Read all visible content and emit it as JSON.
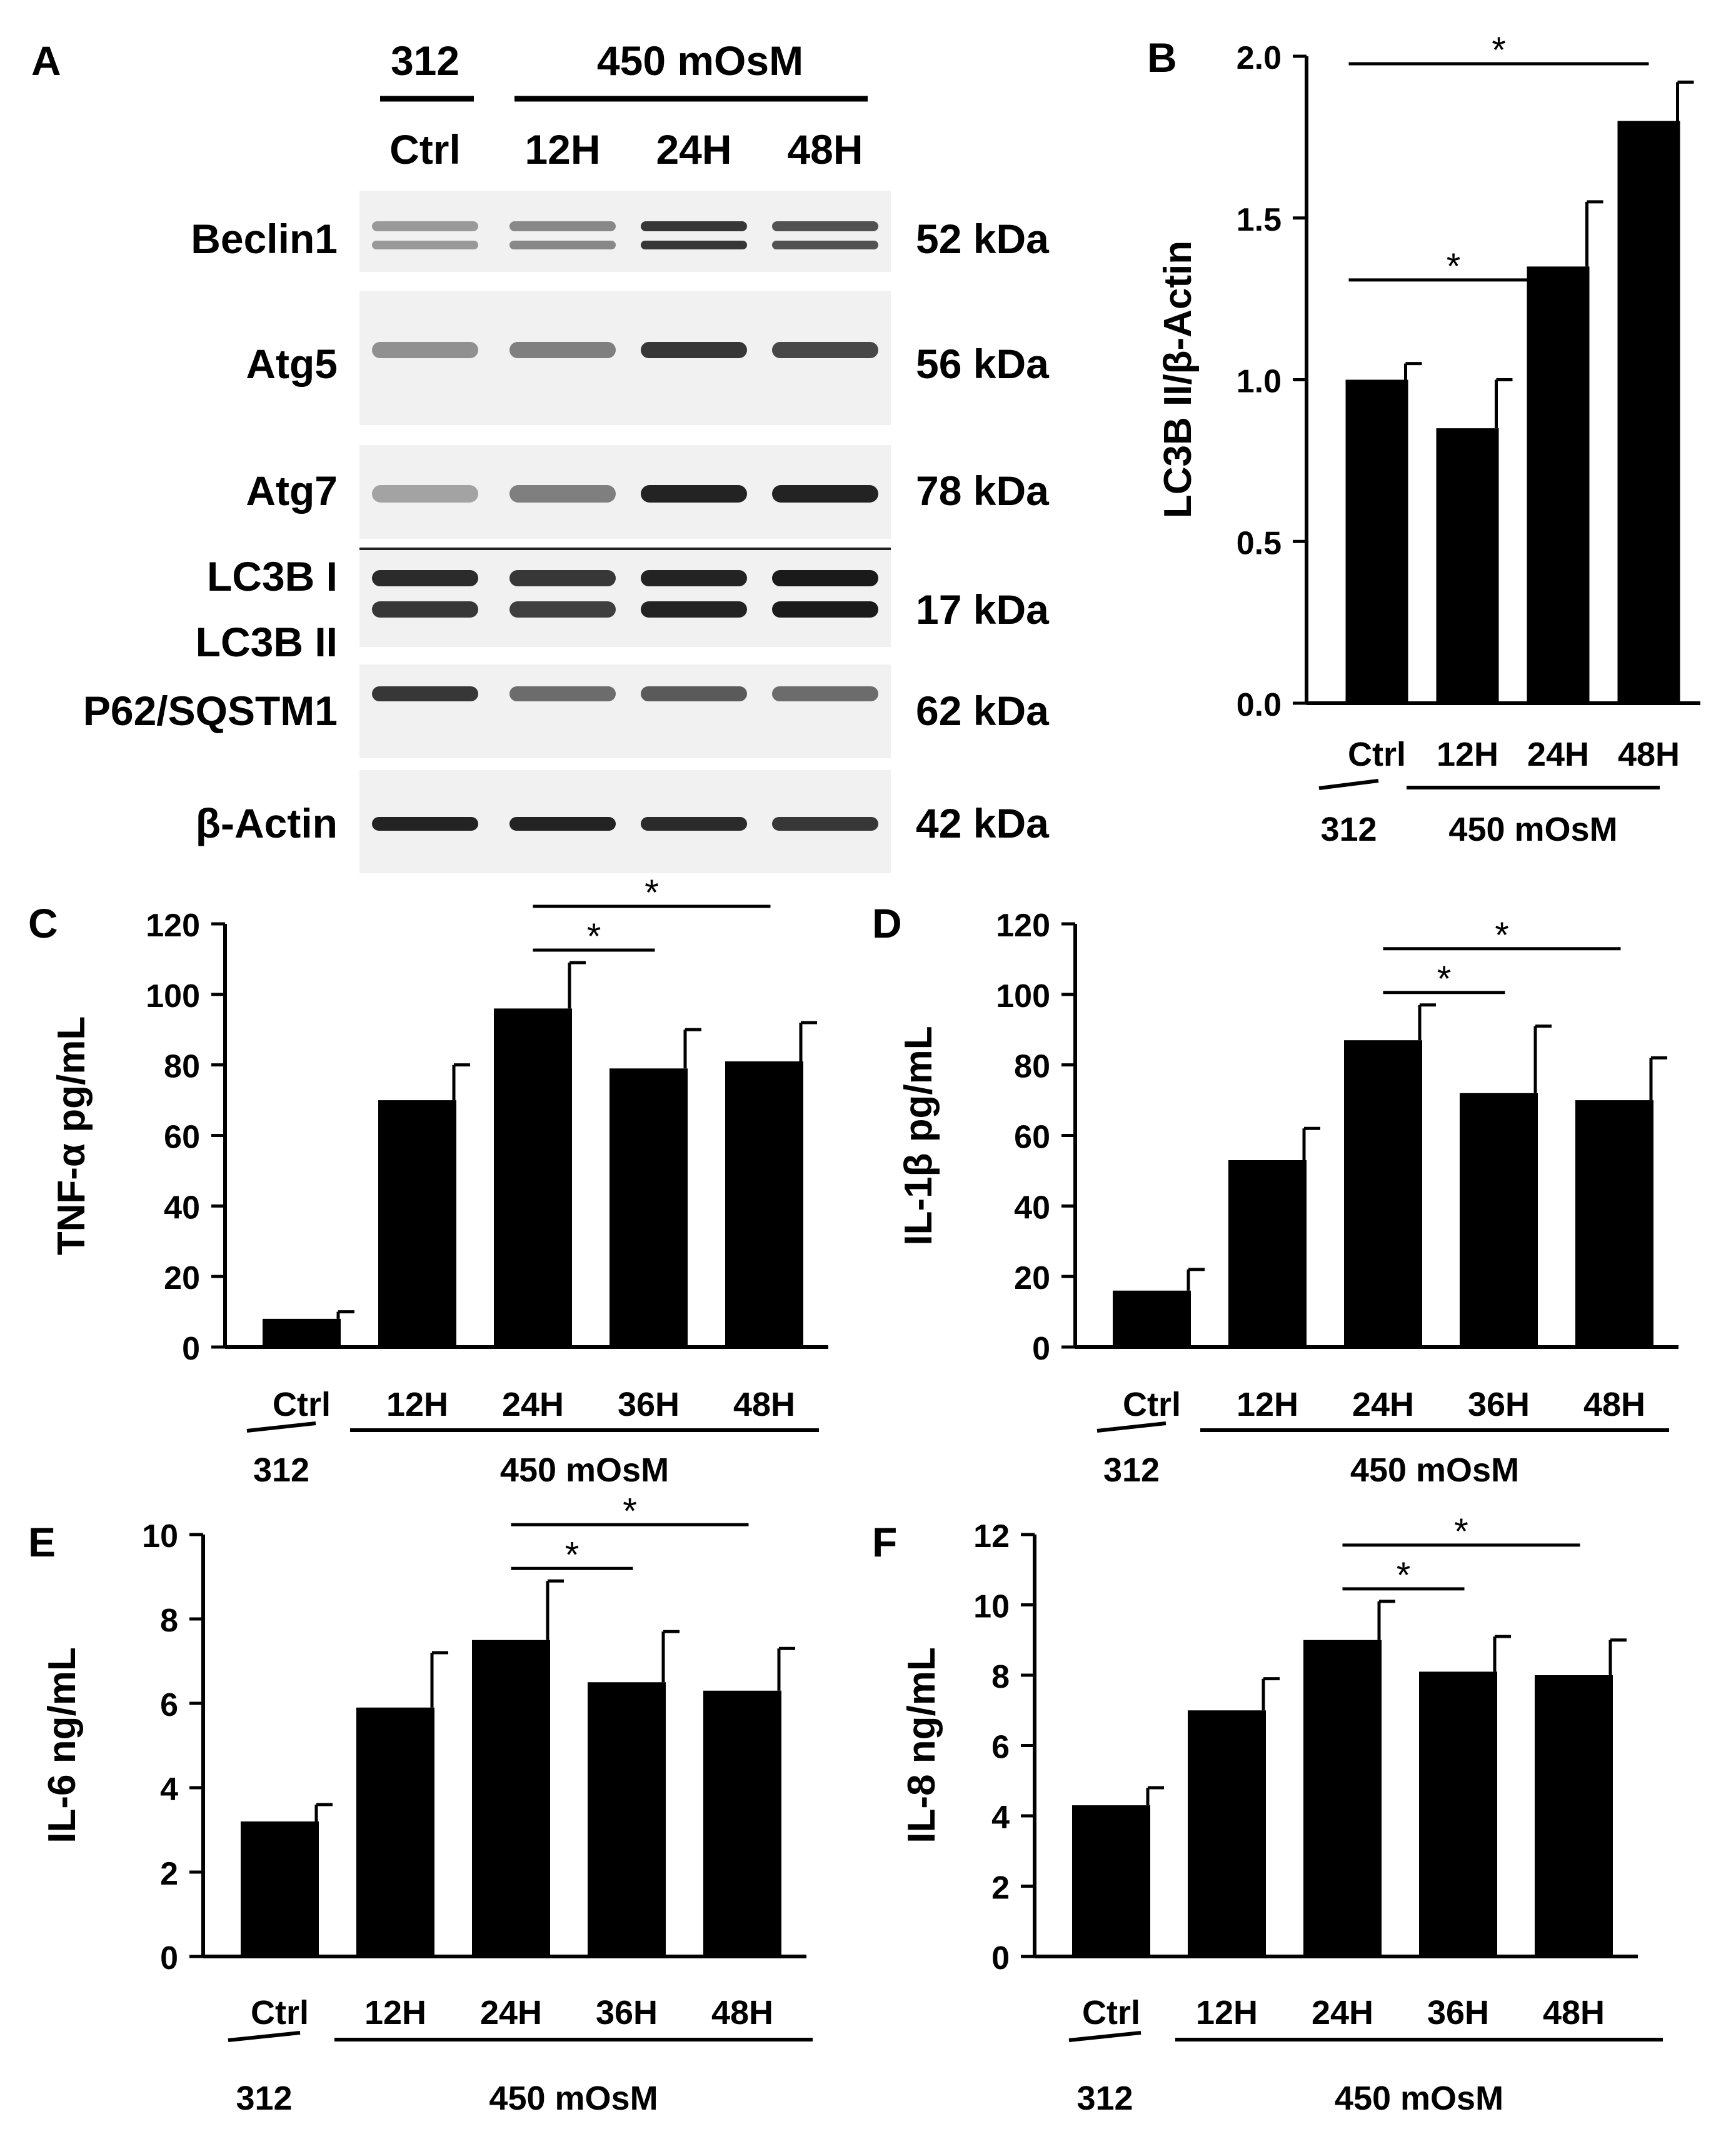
{
  "colors": {
    "bar": "#000000",
    "axis": "#000000",
    "background": "#ffffff",
    "blot_bg": "#f1f1f1",
    "band": "#1a1a1a"
  },
  "panel_a": {
    "label": "A",
    "header_ctrl": "312",
    "header_treat": "450 mOsM",
    "lanes": [
      "Ctrl",
      "12H",
      "24H",
      "48H"
    ],
    "blots": [
      {
        "protein": "Beclin1",
        "size": "52 kDa",
        "intensity": [
          0.3,
          0.4,
          0.85,
          0.7
        ]
      },
      {
        "protein": "Atg5",
        "size": "56 kDa",
        "intensity": [
          0.35,
          0.45,
          0.85,
          0.75
        ]
      },
      {
        "protein": "Atg7",
        "size": "78 kDa",
        "intensity": [
          0.25,
          0.45,
          0.95,
          0.95
        ]
      },
      {
        "protein": "LC3B I",
        "protein2": "LC3B II",
        "size": "17 kDa",
        "intensity": [
          0.9,
          0.85,
          0.95,
          1.0
        ],
        "intensity2": [
          0.85,
          0.8,
          0.95,
          1.0
        ]
      },
      {
        "protein": "P62/SQSTM1",
        "size": "62 kDa",
        "intensity": [
          0.85,
          0.55,
          0.65,
          0.55
        ]
      },
      {
        "protein": "β-Actin",
        "size": "42 kDa",
        "intensity": [
          0.95,
          0.95,
          0.9,
          0.85
        ]
      }
    ]
  },
  "chart_data": [
    {
      "panel": "B",
      "type": "bar",
      "categories": [
        "Ctrl",
        "12H",
        "24H",
        "48H"
      ],
      "values": [
        1.0,
        0.85,
        1.35,
        1.8
      ],
      "errors": [
        0.05,
        0.15,
        0.2,
        0.12
      ],
      "ylabel": "LC3B  II/β-Actin",
      "ylim": [
        0,
        2.0
      ],
      "yticks": [
        "0.0",
        "0.5",
        "1.0",
        "1.5",
        "2.0"
      ],
      "group_ctrl": "312",
      "group_treat": "450 mOsM",
      "significance": [
        {
          "from": 0,
          "to": 2,
          "label": "*"
        },
        {
          "from": 0,
          "to": 3,
          "label": "*"
        }
      ]
    },
    {
      "panel": "C",
      "type": "bar",
      "categories": [
        "Ctrl",
        "12H",
        "24H",
        "36H",
        "48H"
      ],
      "values": [
        8,
        70,
        96,
        79,
        81
      ],
      "errors": [
        2,
        10,
        13,
        11,
        11
      ],
      "ylabel": "TNF-α pg/mL",
      "ylim": [
        0,
        120
      ],
      "yticks": [
        "0",
        "20",
        "40",
        "60",
        "80",
        "100",
        "120"
      ],
      "group_ctrl": "312",
      "group_treat": "450 mOsM",
      "significance": [
        {
          "from": 2,
          "to": 3,
          "label": "*"
        },
        {
          "from": 2,
          "to": 4,
          "label": "*"
        }
      ]
    },
    {
      "panel": "D",
      "type": "bar",
      "categories": [
        "Ctrl",
        "12H",
        "24H",
        "36H",
        "48H"
      ],
      "values": [
        16,
        53,
        87,
        72,
        70
      ],
      "errors": [
        6,
        9,
        10,
        19,
        12
      ],
      "ylabel": "IL-1β pg/mL",
      "ylim": [
        0,
        120
      ],
      "yticks": [
        "0",
        "20",
        "40",
        "60",
        "80",
        "100",
        "120"
      ],
      "group_ctrl": "312",
      "group_treat": "450 mOsM",
      "significance": [
        {
          "from": 2,
          "to": 3,
          "label": "*"
        },
        {
          "from": 2,
          "to": 4,
          "label": "*"
        }
      ]
    },
    {
      "panel": "E",
      "type": "bar",
      "categories": [
        "Ctrl",
        "12H",
        "24H",
        "36H",
        "48H"
      ],
      "values": [
        3.2,
        5.9,
        7.5,
        6.5,
        6.3
      ],
      "errors": [
        0.4,
        1.3,
        1.4,
        1.2,
        1.0
      ],
      "ylabel": "IL-6 ng/mL",
      "ylim": [
        0,
        10
      ],
      "yticks": [
        "0",
        "2",
        "4",
        "6",
        "8",
        "10"
      ],
      "group_ctrl": "312",
      "group_treat": "450 mOsM",
      "significance": [
        {
          "from": 2,
          "to": 3,
          "label": "*"
        },
        {
          "from": 2,
          "to": 4,
          "label": "*"
        }
      ]
    },
    {
      "panel": "F",
      "type": "bar",
      "categories": [
        "Ctrl",
        "12H",
        "24H",
        "36H",
        "48H"
      ],
      "values": [
        4.3,
        7.0,
        9.0,
        8.1,
        8.0
      ],
      "errors": [
        0.5,
        0.9,
        1.1,
        1.0,
        1.0
      ],
      "ylabel": "IL-8 ng/mL",
      "ylim": [
        0,
        12
      ],
      "yticks": [
        "0",
        "2",
        "4",
        "6",
        "8",
        "10",
        "12"
      ],
      "group_ctrl": "312",
      "group_treat": "450 mOsM",
      "significance": [
        {
          "from": 2,
          "to": 3,
          "label": "*"
        },
        {
          "from": 2,
          "to": 4,
          "label": "*"
        }
      ]
    }
  ]
}
